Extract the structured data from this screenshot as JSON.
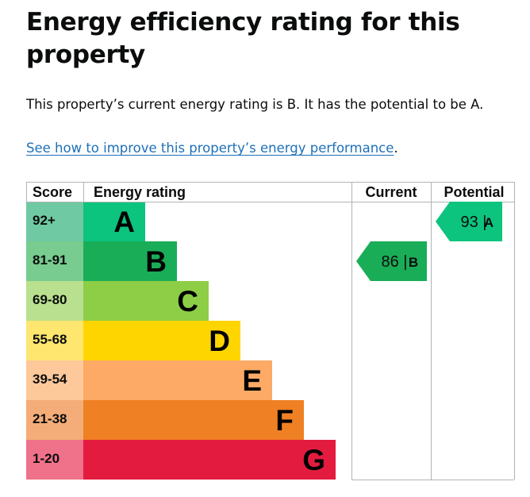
{
  "page": {
    "title": "Energy efficiency rating for this property",
    "summary": "This property’s current energy rating is B. It has the potential to be A.",
    "link_text": "See how to improve this property’s energy performance",
    "link_suffix": "."
  },
  "chart_data": {
    "type": "bar",
    "headers": {
      "score": "Score",
      "rating": "Energy rating",
      "current": "Current",
      "potential": "Potential"
    },
    "bands": [
      {
        "letter": "A",
        "range": "92+",
        "color": "#008054",
        "label_color": "#000000"
      },
      {
        "letter": "B",
        "range": "81-91",
        "color": "#19b459",
        "label_color": "#000000"
      },
      {
        "letter": "C",
        "range": "69-80",
        "color": "#8dce46",
        "label_color": "#000000"
      },
      {
        "letter": "D",
        "range": "55-68",
        "color": "#ffd500",
        "label_color": "#000000"
      },
      {
        "letter": "E",
        "range": "39-54",
        "color": "#fcaa65",
        "label_color": "#000000"
      },
      {
        "letter": "F",
        "range": "21-38",
        "color": "#ef8023",
        "label_color": "#000000"
      },
      {
        "letter": "G",
        "range": "1-20",
        "color": "#e9153b",
        "label_color": "#000000"
      }
    ],
    "band_colors": [
      "#0cc47e",
      "#1aad58",
      "#8dce46",
      "#ffd500",
      "#fcaa65",
      "#ef8023",
      "#e31b3f"
    ],
    "score_cell_colors": [
      "#6fc9a2",
      "#78cc8f",
      "#b9e08f",
      "#ffe66e",
      "#fdc99b",
      "#f4ad78",
      "#f0718a"
    ],
    "current": {
      "score": 86,
      "band": "B"
    },
    "potential": {
      "score": 93,
      "band": "A"
    }
  }
}
